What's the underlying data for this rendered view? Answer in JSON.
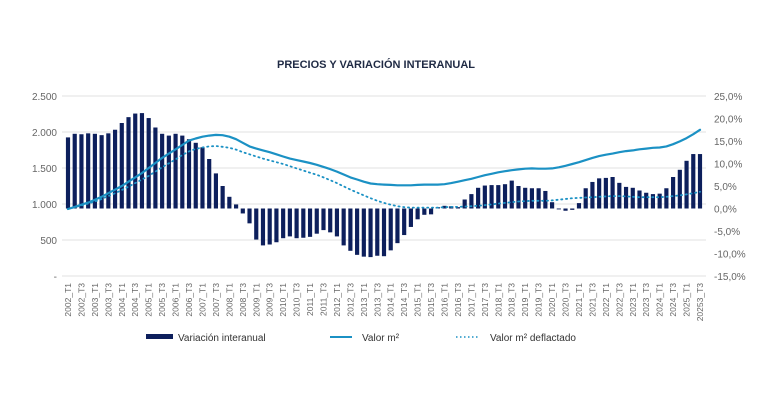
{
  "chart_data": {
    "type": "bar+line",
    "title": "PRECIOS Y VARIACIÓN INTERANUAL",
    "xlabel": "",
    "ylabel_left": "",
    "ylabel_right": "",
    "left_axis": {
      "ylim": [
        0,
        2500
      ],
      "ticks": [
        0,
        500,
        1000,
        1500,
        2000,
        2500
      ],
      "tick_labels": [
        "-",
        "500",
        "1.000",
        "1.500",
        "2.000",
        "2.500"
      ]
    },
    "right_axis": {
      "ylim": [
        -15,
        25
      ],
      "ticks": [
        -15,
        -10,
        -5,
        0,
        5,
        10,
        15,
        20,
        25
      ],
      "tick_labels": [
        "-15,0%",
        "-10,0%",
        "-5,0%",
        "0,0%",
        "5,0%",
        "10,0%",
        "15,0%",
        "20,0%",
        "25,0%"
      ]
    },
    "grid": true,
    "legend_position": "bottom",
    "x_tick_labels": [
      "2002_T1",
      "2002_T3",
      "2003_T1",
      "2003_T3",
      "2004_T1",
      "2004_T3",
      "2005_T1",
      "2005_T3",
      "2006_T1",
      "2006_T3",
      "2007_T1",
      "2007_T3",
      "2008_T1",
      "2008_T3",
      "2009_T1",
      "2009_T3",
      "2010_T1",
      "2010_T3",
      "2011_T1",
      "2011_T3",
      "2012_T1",
      "2012_T3",
      "2013_T1",
      "2013_T3",
      "2014_T1",
      "2014_T3",
      "2015_T1",
      "2015_T3",
      "2016_T1",
      "2016_T3",
      "2017_T1",
      "2017_T3",
      "2018_T1",
      "2018_T3",
      "2019_T1",
      "2019_T3",
      "2020_T1",
      "2020_T3",
      "2021_T1",
      "2021_T3",
      "2022_T1",
      "2022_T3",
      "2023_T1",
      "2023_T3",
      "2024_T1",
      "2024_T3",
      "2025_T1",
      "20253_T3"
    ],
    "quarters_count": 95,
    "series": [
      {
        "name": "Variación interanual",
        "type": "bar",
        "axis": "right",
        "color": "#0d1f5c",
        "values": [
          15.8,
          16.6,
          16.5,
          16.7,
          16.6,
          16.3,
          16.7,
          17.5,
          19.0,
          20.3,
          21.1,
          21.2,
          20.1,
          18.0,
          16.6,
          16.2,
          16.6,
          16.2,
          15.4,
          14.6,
          13.6,
          11.0,
          7.8,
          5.0,
          2.6,
          0.9,
          -1.1,
          -3.3,
          -6.9,
          -8.2,
          -8.0,
          -7.5,
          -6.6,
          -6.2,
          -6.6,
          -6.5,
          -6.3,
          -5.6,
          -4.8,
          -5.3,
          -6.2,
          -8.2,
          -9.4,
          -10.3,
          -10.7,
          -10.8,
          -10.5,
          -10.6,
          -9.3,
          -7.7,
          -5.9,
          -4.1,
          -2.4,
          -1.4,
          -1.3,
          0.3,
          0.6,
          0.5,
          0.3,
          2.0,
          3.2,
          4.6,
          5.1,
          5.2,
          5.2,
          5.4,
          6.2,
          5.0,
          4.6,
          4.5,
          4.5,
          3.9,
          1.4,
          -0.2,
          -0.5,
          -0.3,
          1.2,
          4.5,
          5.9,
          6.7,
          6.8,
          7.0,
          5.7,
          4.8,
          4.6,
          4.0,
          3.5,
          3.2,
          3.3,
          4.5,
          7.0,
          8.6,
          10.6,
          12.1,
          12.1
        ]
      },
      {
        "name": "Valor m²",
        "type": "line",
        "axis": "left",
        "color": "#1b91c4",
        "style": "solid",
        "values": [
          930,
          960,
          990,
          1020,
          1060,
          1100,
          1150,
          1200,
          1250,
          1310,
          1370,
          1430,
          1500,
          1570,
          1640,
          1700,
          1760,
          1820,
          1880,
          1910,
          1935,
          1950,
          1960,
          1955,
          1935,
          1900,
          1850,
          1800,
          1770,
          1745,
          1720,
          1690,
          1660,
          1630,
          1610,
          1590,
          1570,
          1545,
          1515,
          1485,
          1450,
          1410,
          1370,
          1340,
          1310,
          1285,
          1275,
          1270,
          1265,
          1260,
          1260,
          1260,
          1265,
          1270,
          1270,
          1270,
          1275,
          1290,
          1310,
          1330,
          1350,
          1375,
          1400,
          1420,
          1440,
          1455,
          1470,
          1480,
          1490,
          1495,
          1490,
          1490,
          1495,
          1510,
          1530,
          1555,
          1580,
          1610,
          1640,
          1665,
          1685,
          1700,
          1720,
          1735,
          1745,
          1760,
          1770,
          1780,
          1785,
          1800,
          1830,
          1870,
          1915,
          1970,
          2030
        ]
      },
      {
        "name": "Valor m² deflactado",
        "type": "line",
        "axis": "left",
        "color": "#1b91c4",
        "style": "dotted",
        "values": [
          930,
          955,
          980,
          1005,
          1035,
          1070,
          1110,
          1150,
          1195,
          1240,
          1290,
          1340,
          1390,
          1450,
          1510,
          1565,
          1620,
          1680,
          1730,
          1765,
          1785,
          1800,
          1805,
          1795,
          1780,
          1755,
          1720,
          1690,
          1660,
          1630,
          1605,
          1580,
          1555,
          1525,
          1495,
          1465,
          1435,
          1405,
          1370,
          1330,
          1290,
          1245,
          1200,
          1160,
          1120,
          1080,
          1045,
          1015,
          990,
          970,
          955,
          950,
          950,
          950,
          950,
          950,
          955,
          960,
          960,
          965,
          970,
          975,
          985,
          995,
          1005,
          1015,
          1025,
          1035,
          1040,
          1045,
          1045,
          1045,
          1050,
          1060,
          1070,
          1080,
          1085,
          1090,
          1095,
          1100,
          1105,
          1110,
          1110,
          1105,
          1100,
          1095,
          1095,
          1095,
          1095,
          1100,
          1110,
          1120,
          1135,
          1150,
          1170
        ]
      }
    ],
    "legend": [
      {
        "label": "Variación interanual",
        "marker": "bar"
      },
      {
        "label": "Valor m²",
        "marker": "line"
      },
      {
        "label": "Valor m² deflactado",
        "marker": "dotted-line"
      }
    ]
  }
}
